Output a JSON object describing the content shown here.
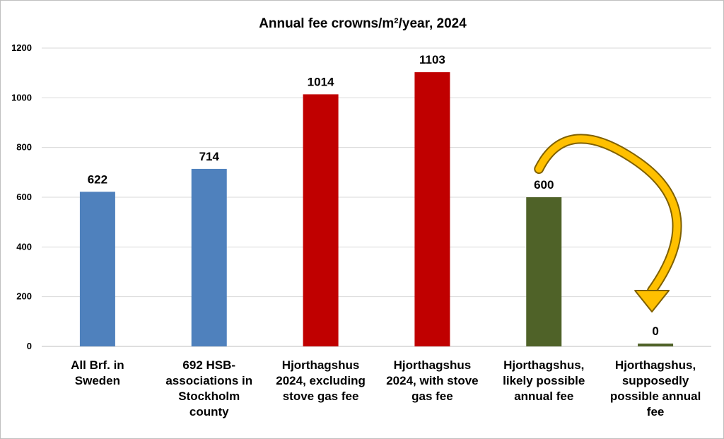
{
  "chart_data": {
    "type": "bar",
    "title": "Annual fee crowns/m²/year, 2024",
    "xlabel": "",
    "ylabel": "",
    "ylim": [
      0,
      1200
    ],
    "yticks": [
      0,
      200,
      400,
      600,
      800,
      1000,
      1200
    ],
    "grid": true,
    "legend": "none",
    "categories": [
      [
        "All Brf. in",
        "Sweden"
      ],
      [
        "692 HSB-",
        "associations in",
        "Stockholm",
        "county"
      ],
      [
        "Hjorthagshus",
        "2024, excluding",
        "stove gas fee"
      ],
      [
        "Hjorthagshus",
        "2024, with stove",
        "gas fee"
      ],
      [
        "Hjorthagshus,",
        "likely possible",
        "annual fee"
      ],
      [
        "Hjorthagshus,",
        "supposedly",
        "possible annual",
        "fee"
      ]
    ],
    "values": [
      622,
      714,
      1014,
      1103,
      600,
      0
    ],
    "bar_colors": [
      "#4f81bd",
      "#4f81bd",
      "#c00000",
      "#c00000",
      "#4f6228",
      "#4f6228"
    ],
    "annotation": {
      "type": "curved-arrow",
      "from_category_index": 4,
      "to_category_index": 5,
      "color": "#ffc000",
      "outline": "#7f6000"
    }
  }
}
